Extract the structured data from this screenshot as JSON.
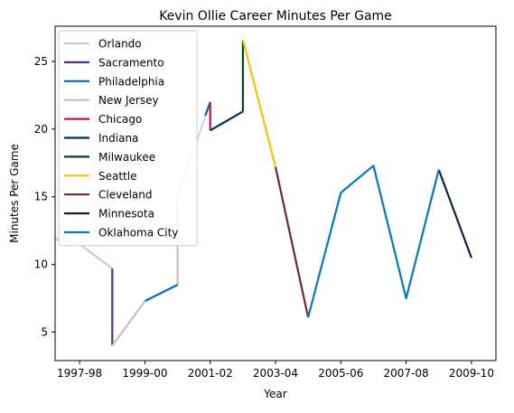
{
  "chart_data": {
    "type": "line",
    "title": "Kevin Ollie Career Minutes Per Game",
    "xlabel": "Year",
    "ylabel": "Minutes Per Game",
    "xlim": [
      -0.75,
      12.75
    ],
    "ylim": [
      2.9,
      27.6
    ],
    "x_ticks": [
      {
        "pos": 0,
        "label": "1997-98"
      },
      {
        "pos": 2,
        "label": "1999-00"
      },
      {
        "pos": 4,
        "label": "2001-02"
      },
      {
        "pos": 6,
        "label": "2003-04"
      },
      {
        "pos": 8,
        "label": "2005-06"
      },
      {
        "pos": 10,
        "label": "2007-08"
      },
      {
        "pos": 12,
        "label": "2009-10"
      }
    ],
    "y_ticks": [
      5,
      10,
      15,
      20,
      25
    ],
    "legend_position": "upper-left",
    "series": [
      {
        "name": "Orlando",
        "color": "#c4ced4",
        "points": [
          [
            -0.75,
            11.9
          ],
          [
            0,
            11.5
          ],
          [
            1,
            9.7
          ]
        ]
      },
      {
        "name": "Sacramento",
        "color": "#5a2d81",
        "points": [
          [
            1,
            9.7
          ],
          [
            1,
            4.0
          ]
        ]
      },
      {
        "name": "Philadelphia",
        "color": "#006bb6",
        "points": [
          [
            2,
            7.3
          ],
          [
            3,
            8.5
          ]
        ]
      },
      {
        "name": "New Jersey",
        "color": "#bec0c2",
        "points": [
          [
            1,
            4.0
          ],
          [
            2,
            7.3
          ]
        ]
      },
      {
        "name": "Chicago",
        "color": "#ce1141",
        "points": [
          [
            4,
            22.0
          ],
          [
            4,
            19.9
          ]
        ]
      },
      {
        "name": "Indiana",
        "color": "#002d62",
        "points": [
          [
            4,
            19.9
          ],
          [
            5,
            21.3
          ]
        ]
      },
      {
        "name": "Milwaukee",
        "color": "#00471b",
        "points": [
          [
            5,
            21.3
          ],
          [
            5,
            26.6
          ]
        ]
      },
      {
        "name": "Seattle",
        "color": "#ffc200",
        "points": [
          [
            5,
            26.6
          ],
          [
            6,
            17.2
          ]
        ]
      },
      {
        "name": "Cleveland",
        "color": "#6f263d",
        "points": [
          [
            6,
            17.2
          ],
          [
            7,
            6.1
          ]
        ]
      },
      {
        "name": "Minnesota",
        "color": "#0c2340",
        "points": [
          [
            11,
            17.0
          ],
          [
            12,
            10.5
          ]
        ]
      },
      {
        "name": "Oklahoma City",
        "color": "#007ac1",
        "points": [
          [
            7,
            6.1
          ],
          [
            8,
            15.3
          ],
          [
            9,
            17.3
          ],
          [
            10,
            7.5
          ],
          [
            11,
            17.0
          ]
        ]
      }
    ],
    "extra_segments": [
      {
        "color": "#bec0c2",
        "points": [
          [
            3,
            8.5
          ],
          [
            3,
            15.0
          ]
        ]
      },
      {
        "color": "#c8dcec",
        "points": [
          [
            3,
            15.0
          ],
          [
            4,
            22.0
          ]
        ]
      },
      {
        "color": "#006bb6",
        "points": [
          [
            3.85,
            21.0
          ],
          [
            4,
            22.0
          ]
        ]
      }
    ]
  }
}
